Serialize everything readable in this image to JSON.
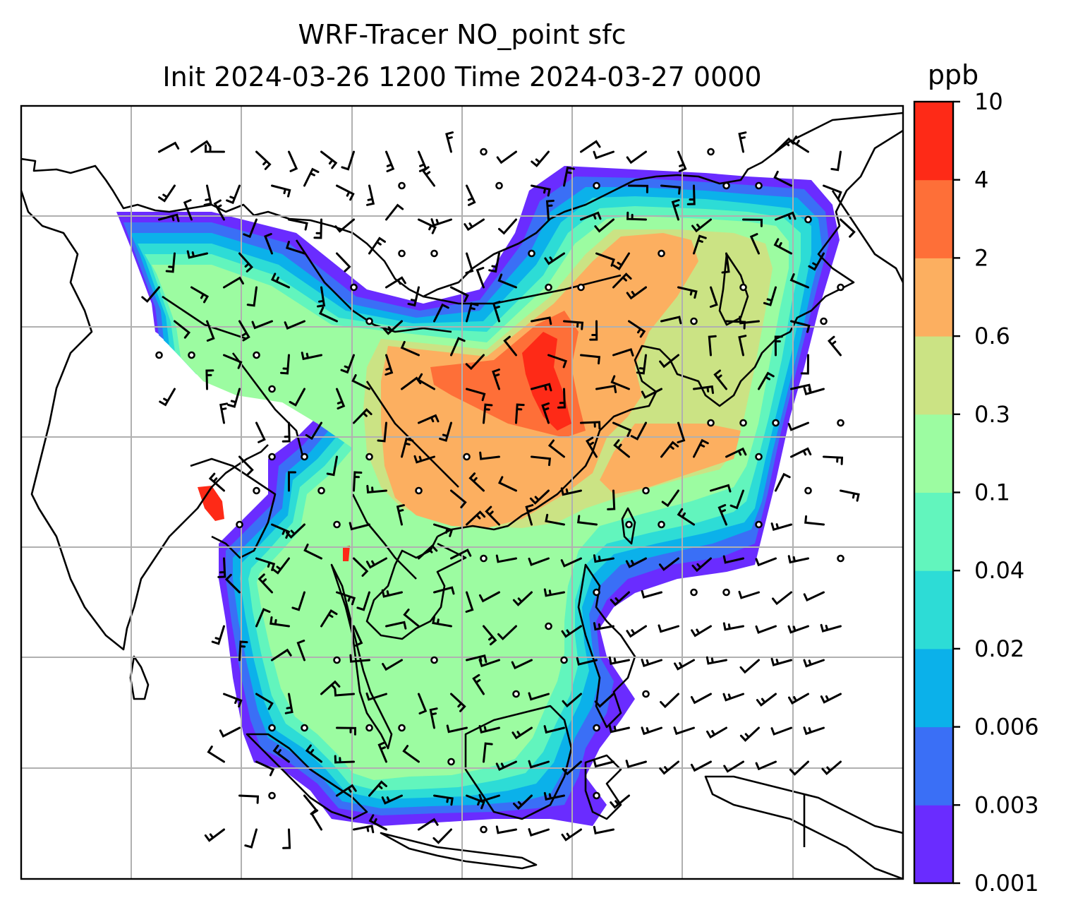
{
  "title": {
    "line1": "WRF-Tracer NO_point sfc",
    "line2": "Init 2024-03-26 1200 Time 2024-03-27 0000"
  },
  "colorbar": {
    "units": "ppb",
    "levels": [
      "0.001",
      "0.003",
      "0.006",
      "0.02",
      "0.04",
      "0.1",
      "0.3",
      "0.6",
      "2",
      "4",
      "10"
    ],
    "colors": [
      "#6a2cff",
      "#3a6ff6",
      "#0bb1ea",
      "#2ddcd6",
      "#62f5bd",
      "#9cfca1",
      "#cbe384",
      "#fcaf60",
      "#fe6f38",
      "#fe2a17"
    ]
  },
  "map": {
    "gridlines": true,
    "coastline_color": "#000000",
    "field_name": "NO_point",
    "wind_barbs": true
  }
}
